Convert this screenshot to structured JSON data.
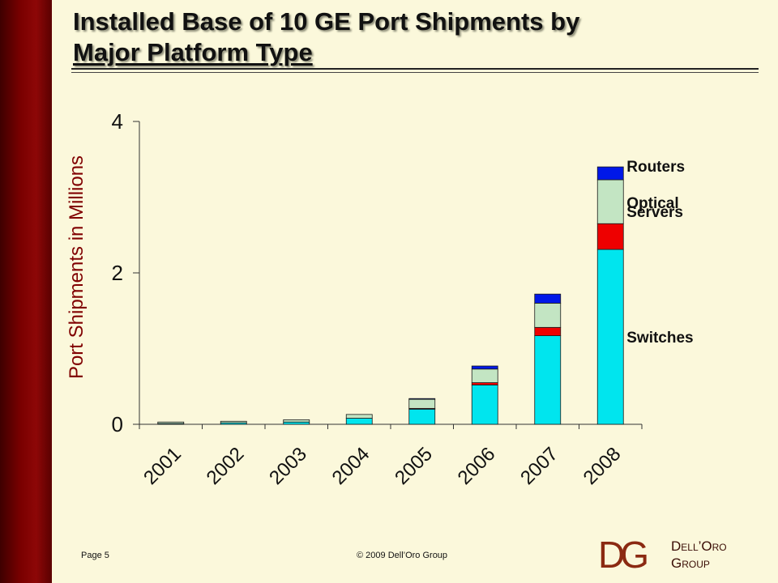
{
  "title": {
    "line1": "Installed Base of 10 GE Port Shipments by",
    "line2": "Major Platform Type"
  },
  "footer": {
    "page": "Page 5",
    "copyright": "© 2009 Dell’Oro Group"
  },
  "logo": {
    "monogram": "DG",
    "name_line1": "Dell’Oro",
    "name_line2": "Group"
  },
  "colors": {
    "Switches": "#00e5ee",
    "Servers": "#ee0000",
    "Optical": "#c3e5c3",
    "Routers": "#0018e8"
  },
  "chart_data": {
    "type": "bar",
    "stacked": true,
    "title": "Installed Base of 10 GE Port Shipments by Major Platform Type",
    "ylabel": "Port Shipments in Millions",
    "xlabel": "",
    "ylim": [
      0,
      4
    ],
    "yticks": [
      0,
      2,
      4
    ],
    "grid": false,
    "legend": "inline labels right of last bar",
    "categories": [
      "2001",
      "2002",
      "2003",
      "2004",
      "2005",
      "2006",
      "2007",
      "2008"
    ],
    "series": [
      {
        "name": "Switches",
        "values": [
          0.01,
          0.02,
          0.03,
          0.08,
          0.2,
          0.52,
          1.17,
          2.31
        ]
      },
      {
        "name": "Servers",
        "values": [
          0.0,
          0.0,
          0.0,
          0.0,
          0.01,
          0.03,
          0.11,
          0.34
        ]
      },
      {
        "name": "Optical",
        "values": [
          0.02,
          0.02,
          0.03,
          0.05,
          0.12,
          0.18,
          0.32,
          0.58
        ]
      },
      {
        "name": "Routers",
        "values": [
          0.0,
          0.0,
          0.0,
          0.0,
          0.01,
          0.04,
          0.12,
          0.17
        ]
      }
    ],
    "series_labels": [
      "Routers",
      "Optical",
      "Servers",
      "Switches"
    ]
  }
}
